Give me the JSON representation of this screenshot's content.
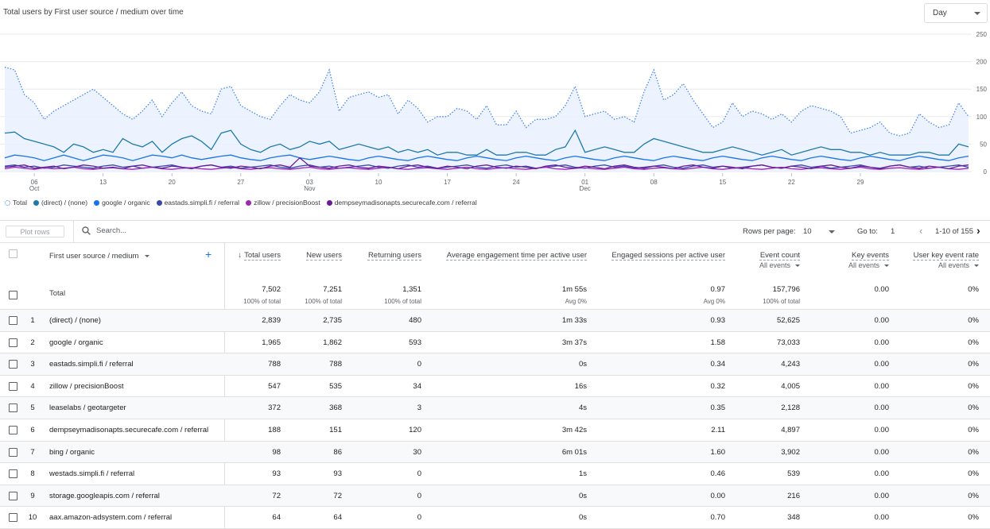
{
  "chart_title": "Total users by First user source / medium over time",
  "granularity": "Day",
  "chart_data": {
    "type": "line",
    "y_ticks": [
      "250",
      "200",
      "150",
      "100",
      "50",
      "0"
    ],
    "ylim": [
      0,
      250
    ],
    "x_ticks": [
      {
        "day": "06",
        "month": "Oct"
      },
      {
        "day": "13",
        "month": ""
      },
      {
        "day": "20",
        "month": ""
      },
      {
        "day": "27",
        "month": ""
      },
      {
        "day": "03",
        "month": "Nov"
      },
      {
        "day": "10",
        "month": ""
      },
      {
        "day": "17",
        "month": ""
      },
      {
        "day": "24",
        "month": ""
      },
      {
        "day": "01",
        "month": "Dec"
      },
      {
        "day": "08",
        "month": ""
      },
      {
        "day": "15",
        "month": ""
      },
      {
        "day": "22",
        "month": ""
      },
      {
        "day": "29",
        "month": ""
      }
    ],
    "series": [
      {
        "name": "Total",
        "color": "#4285f4",
        "style": "dotted-area",
        "values": [
          190,
          185,
          140,
          125,
          95,
          110,
          120,
          130,
          140,
          150,
          135,
          120,
          105,
          95,
          110,
          130,
          100,
          125,
          145,
          120,
          110,
          105,
          150,
          155,
          120,
          110,
          100,
          95,
          120,
          140,
          130,
          125,
          145,
          185,
          110,
          135,
          140,
          145,
          135,
          140,
          105,
          130,
          115,
          90,
          100,
          100,
          115,
          110,
          95,
          120,
          85,
          85,
          110,
          80,
          95,
          95,
          100,
          120,
          155,
          100,
          105,
          110,
          95,
          100,
          90,
          145,
          185,
          130,
          140,
          160,
          130,
          105,
          80,
          90,
          125,
          100,
          110,
          105,
          95,
          105,
          90,
          110,
          120,
          115,
          110,
          100,
          70,
          75,
          80,
          90,
          70,
          65,
          70,
          105,
          90,
          80,
          85,
          125,
          100
        ]
      },
      {
        "name": "(direct) / (none)",
        "color": "#1f7aa8",
        "style": "line",
        "values": [
          70,
          72,
          60,
          55,
          50,
          45,
          35,
          50,
          45,
          35,
          40,
          35,
          60,
          50,
          45,
          55,
          35,
          50,
          60,
          65,
          55,
          40,
          70,
          75,
          50,
          40,
          35,
          45,
          50,
          40,
          45,
          55,
          50,
          55,
          40,
          45,
          50,
          45,
          40,
          45,
          35,
          40,
          35,
          40,
          30,
          35,
          35,
          30,
          30,
          40,
          30,
          30,
          35,
          35,
          30,
          30,
          40,
          45,
          75,
          35,
          40,
          45,
          40,
          35,
          35,
          50,
          60,
          55,
          50,
          45,
          40,
          35,
          35,
          40,
          45,
          40,
          35,
          30,
          35,
          40,
          30,
          35,
          40,
          45,
          40,
          40,
          35,
          35,
          30,
          35,
          30,
          30,
          30,
          35,
          35,
          30,
          30,
          50,
          45
        ]
      },
      {
        "name": "google / organic",
        "color": "#1a73e8",
        "style": "line",
        "values": [
          25,
          30,
          28,
          25,
          20,
          25,
          30,
          25,
          20,
          25,
          30,
          28,
          25,
          20,
          25,
          30,
          28,
          25,
          30,
          25,
          22,
          25,
          28,
          30,
          25,
          22,
          20,
          25,
          28,
          30,
          25,
          22,
          25,
          28,
          25,
          22,
          20,
          25,
          28,
          25,
          22,
          20,
          25,
          28,
          25,
          22,
          20,
          25,
          28,
          25,
          22,
          20,
          25,
          28,
          25,
          22,
          20,
          25,
          28,
          25,
          22,
          20,
          25,
          28,
          25,
          22,
          20,
          25,
          28,
          25,
          22,
          20,
          25,
          28,
          25,
          22,
          20,
          25,
          28,
          25,
          22,
          20,
          25,
          28,
          25,
          22,
          20,
          25,
          28,
          25,
          22,
          20,
          25,
          28,
          25,
          22,
          20,
          25,
          28
        ]
      },
      {
        "name": "eastads.simpli.fi / referral",
        "color": "#3949ab",
        "style": "line",
        "values": [
          10,
          12,
          8,
          10,
          6,
          8,
          12,
          10,
          8,
          6,
          10,
          12,
          8,
          10,
          6,
          8,
          10,
          12,
          8,
          6,
          10,
          12,
          8,
          10,
          6,
          8,
          10,
          12,
          8,
          6,
          10,
          12,
          8,
          10,
          6,
          8,
          10,
          12,
          8,
          6,
          10,
          12,
          8,
          10,
          6,
          8,
          10,
          12,
          8,
          6,
          10,
          12,
          8,
          10,
          6,
          8,
          10,
          12,
          8,
          6,
          10,
          12,
          8,
          10,
          6,
          8,
          10,
          12,
          8,
          6,
          10,
          12,
          8,
          10,
          6,
          8,
          10,
          12,
          8,
          6,
          10,
          12,
          8,
          10,
          6,
          8,
          10,
          12,
          8,
          6,
          10,
          12,
          8,
          10,
          6,
          8,
          10,
          12,
          8
        ]
      },
      {
        "name": "zillow / precisionBoost",
        "color": "#9c27b0",
        "style": "line",
        "values": [
          5,
          8,
          6,
          4,
          7,
          5,
          6,
          8,
          5,
          4,
          6,
          7,
          5,
          4,
          6,
          8,
          5,
          4,
          6,
          7,
          5,
          4,
          6,
          8,
          5,
          4,
          6,
          7,
          5,
          4,
          6,
          8,
          5,
          4,
          6,
          7,
          5,
          4,
          6,
          8,
          5,
          4,
          6,
          7,
          5,
          4,
          6,
          8,
          5,
          4,
          6,
          7,
          5,
          4,
          6,
          8,
          5,
          4,
          6,
          7,
          5,
          4,
          6,
          8,
          5,
          4,
          6,
          7,
          5,
          4,
          6,
          8,
          5,
          4,
          6,
          7,
          5,
          4,
          6,
          8,
          5,
          4,
          6,
          7,
          5,
          4,
          6,
          8,
          5,
          4,
          6,
          7,
          5,
          4,
          6,
          8,
          5,
          4,
          6
        ]
      },
      {
        "name": "dempseymadisonapts.securecafe.com / referral",
        "color": "#6a1b9a",
        "style": "line",
        "values": [
          8,
          10,
          12,
          6,
          8,
          10,
          5,
          8,
          12,
          10,
          6,
          8,
          5,
          10,
          12,
          8,
          6,
          10,
          8,
          5,
          10,
          12,
          8,
          6,
          10,
          8,
          5,
          10,
          12,
          8,
          25,
          10,
          8,
          6,
          10,
          12,
          8,
          6,
          10,
          8,
          5,
          10,
          12,
          8,
          6,
          10,
          8,
          5,
          10,
          12,
          8,
          6,
          10,
          8,
          5,
          10,
          12,
          8,
          6,
          10,
          8,
          5,
          10,
          12,
          8,
          6,
          10,
          8,
          5,
          10,
          12,
          8,
          6,
          10,
          8,
          5,
          10,
          12,
          8,
          6,
          10,
          8,
          5,
          10,
          12,
          8,
          6,
          10,
          8,
          5,
          10,
          12,
          8,
          6,
          10,
          8,
          5,
          10,
          12
        ]
      }
    ]
  },
  "toolbar": {
    "plot_rows": "Plot rows",
    "search_placeholder": "Search...",
    "rows_per_page_label": "Rows per page:",
    "rows_per_page_value": "10",
    "goto_label": "Go to:",
    "goto_value": "1",
    "range": "1-10 of 155"
  },
  "table": {
    "dimension_header": "First user source / medium",
    "columns": [
      {
        "label": "Total users",
        "sub": ""
      },
      {
        "label": "New users",
        "sub": ""
      },
      {
        "label": "Returning users",
        "sub": ""
      },
      {
        "label": "Average engagement time per active user",
        "sub": ""
      },
      {
        "label": "Engaged sessions per active user",
        "sub": ""
      },
      {
        "label": "Event count",
        "sub": "All events"
      },
      {
        "label": "Key events",
        "sub": "All events"
      },
      {
        "label": "User key event rate",
        "sub": "All events"
      }
    ],
    "total": {
      "label": "Total",
      "values": [
        "7,502",
        "7,251",
        "1,351",
        "1m 55s",
        "0.97",
        "157,796",
        "0.00",
        "0%"
      ],
      "subs": [
        "100% of total",
        "100% of total",
        "100% of total",
        "Avg 0%",
        "Avg 0%",
        "100% of total",
        "",
        ""
      ]
    },
    "rows": [
      {
        "n": "1",
        "dim": "(direct) / (none)",
        "values": [
          "2,839",
          "2,735",
          "480",
          "1m 33s",
          "0.93",
          "52,625",
          "0.00",
          "0%"
        ]
      },
      {
        "n": "2",
        "dim": "google / organic",
        "values": [
          "1,965",
          "1,862",
          "593",
          "3m 37s",
          "1.58",
          "73,033",
          "0.00",
          "0%"
        ]
      },
      {
        "n": "3",
        "dim": "eastads.simpli.fi / referral",
        "values": [
          "788",
          "788",
          "0",
          "0s",
          "0.34",
          "4,243",
          "0.00",
          "0%"
        ]
      },
      {
        "n": "4",
        "dim": "zillow / precisionBoost",
        "values": [
          "547",
          "535",
          "34",
          "16s",
          "0.32",
          "4,005",
          "0.00",
          "0%"
        ]
      },
      {
        "n": "5",
        "dim": "leaselabs / geotargeter",
        "values": [
          "372",
          "368",
          "3",
          "4s",
          "0.35",
          "2,128",
          "0.00",
          "0%"
        ]
      },
      {
        "n": "6",
        "dim": "dempseymadisonapts.securecafe.com / referral",
        "values": [
          "188",
          "151",
          "120",
          "3m 42s",
          "2.11",
          "4,897",
          "0.00",
          "0%"
        ]
      },
      {
        "n": "7",
        "dim": "bing / organic",
        "values": [
          "98",
          "86",
          "30",
          "6m 01s",
          "1.60",
          "3,902",
          "0.00",
          "0%"
        ]
      },
      {
        "n": "8",
        "dim": "westads.simpli.fi / referral",
        "values": [
          "93",
          "93",
          "0",
          "1s",
          "0.46",
          "539",
          "0.00",
          "0%"
        ]
      },
      {
        "n": "9",
        "dim": "storage.googleapis.com / referral",
        "values": [
          "72",
          "72",
          "0",
          "0s",
          "0.00",
          "216",
          "0.00",
          "0%"
        ]
      },
      {
        "n": "10",
        "dim": "aax.amazon-adsystem.com / referral",
        "values": [
          "64",
          "64",
          "0",
          "0s",
          "0.70",
          "348",
          "0.00",
          "0%"
        ]
      }
    ]
  }
}
